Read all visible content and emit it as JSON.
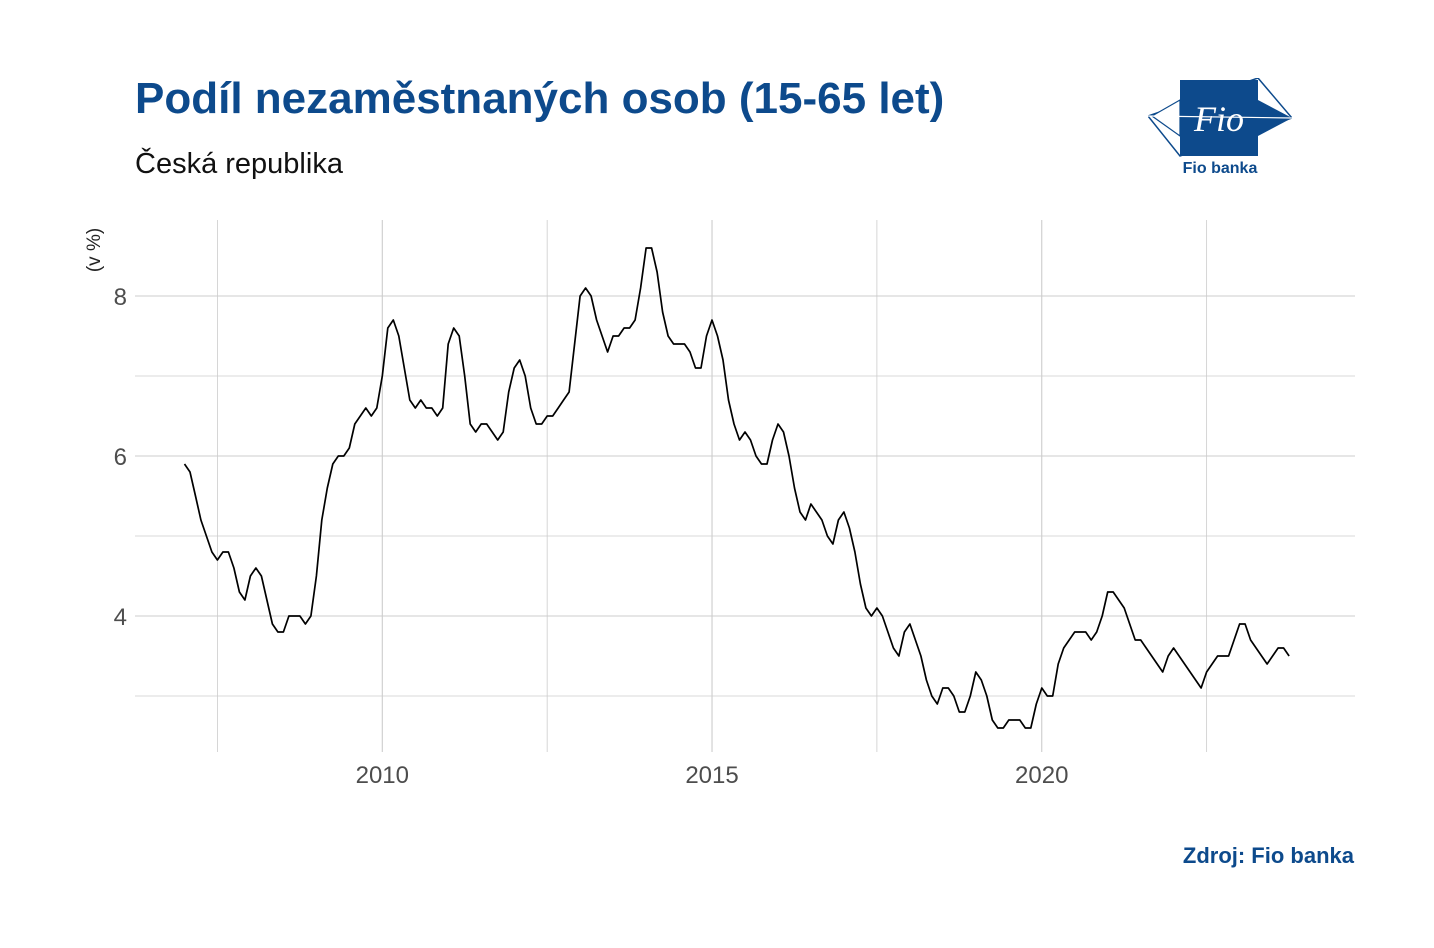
{
  "title": "Podíl nezaměstnaných osob (15-65 let)",
  "subtitle": "Česká republika",
  "source": "Zdroj: Fio banka",
  "logo": {
    "mark_text": "Fio",
    "caption": "Fio banka"
  },
  "colors": {
    "brand": "#0d4a8c",
    "line": "#000000",
    "grid": "#cccccc"
  },
  "chart_data": {
    "type": "line",
    "title": "Podíl nezaměstnaných osob (15-65 let)",
    "subtitle": "Česká republika",
    "xlabel": "",
    "ylabel": "(v %)",
    "x_ticks": [
      2010,
      2015,
      2020
    ],
    "y_ticks": [
      4,
      6,
      8
    ],
    "xlim": [
      2006.25,
      2024.75
    ],
    "ylim": [
      2.3,
      8.95
    ],
    "grid": true,
    "legend": "none",
    "series": [
      {
        "x_start": 2007.0,
        "x_step_months": 1,
        "values": [
          5.9,
          5.8,
          5.5,
          5.2,
          5.0,
          4.8,
          4.7,
          4.8,
          4.8,
          4.6,
          4.3,
          4.2,
          4.5,
          4.6,
          4.5,
          4.2,
          3.9,
          3.8,
          3.8,
          4.0,
          4.0,
          4.0,
          3.9,
          4.0,
          4.5,
          5.2,
          5.6,
          5.9,
          6.0,
          6.0,
          6.1,
          6.4,
          6.5,
          6.6,
          6.5,
          6.6,
          7.0,
          7.6,
          7.7,
          7.5,
          7.1,
          6.7,
          6.6,
          6.7,
          6.6,
          6.6,
          6.5,
          6.6,
          7.4,
          7.6,
          7.5,
          7.0,
          6.4,
          6.3,
          6.4,
          6.4,
          6.3,
          6.2,
          6.3,
          6.8,
          7.1,
          7.2,
          7.0,
          6.6,
          6.4,
          6.4,
          6.5,
          6.5,
          6.6,
          6.7,
          6.8,
          7.4,
          8.0,
          8.1,
          8.0,
          7.7,
          7.5,
          7.3,
          7.5,
          7.5,
          7.6,
          7.6,
          7.7,
          8.1,
          8.6,
          8.6,
          8.3,
          7.8,
          7.5,
          7.4,
          7.4,
          7.4,
          7.3,
          7.1,
          7.1,
          7.5,
          7.7,
          7.5,
          7.2,
          6.7,
          6.4,
          6.2,
          6.3,
          6.2,
          6.0,
          5.9,
          5.9,
          6.2,
          6.4,
          6.3,
          6.0,
          5.6,
          5.3,
          5.2,
          5.4,
          5.3,
          5.2,
          5.0,
          4.9,
          5.2,
          5.3,
          5.1,
          4.8,
          4.4,
          4.1,
          4.0,
          4.1,
          4.0,
          3.8,
          3.6,
          3.5,
          3.8,
          3.9,
          3.7,
          3.5,
          3.2,
          3.0,
          2.9,
          3.1,
          3.1,
          3.0,
          2.8,
          2.8,
          3.0,
          3.3,
          3.2,
          3.0,
          2.7,
          2.6,
          2.6,
          2.7,
          2.7,
          2.7,
          2.6,
          2.6,
          2.9,
          3.1,
          3.0,
          3.0,
          3.4,
          3.6,
          3.7,
          3.8,
          3.8,
          3.8,
          3.7,
          3.8,
          4.0,
          4.3,
          4.3,
          4.2,
          4.1,
          3.9,
          3.7,
          3.7,
          3.6,
          3.5,
          3.4,
          3.3,
          3.5,
          3.6,
          3.5,
          3.4,
          3.3,
          3.2,
          3.1,
          3.3,
          3.4,
          3.5,
          3.5,
          3.5,
          3.7,
          3.9,
          3.9,
          3.7,
          3.6,
          3.5,
          3.4,
          3.5,
          3.6,
          3.6,
          3.5
        ]
      }
    ]
  }
}
